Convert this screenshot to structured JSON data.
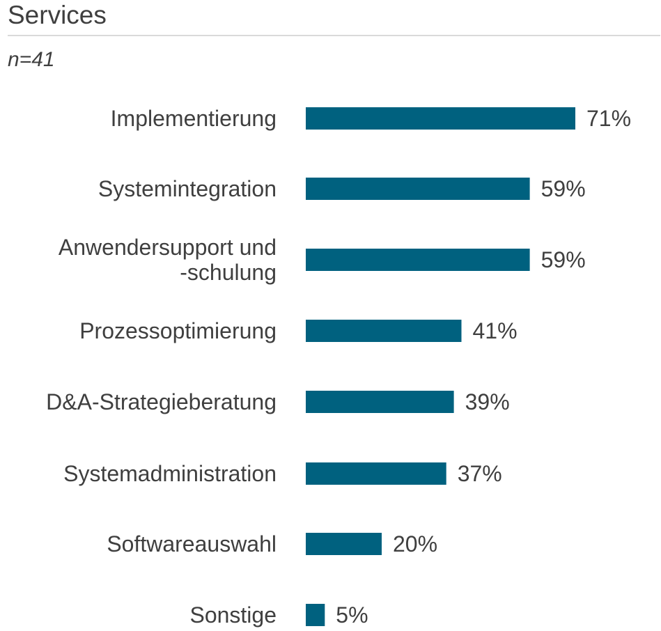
{
  "header": {
    "title": "Services",
    "subtitle": "n=41"
  },
  "colors": {
    "bar": "#00617f",
    "text": "#3f3f3f",
    "rule": "#d9d9d9"
  },
  "chart_data": {
    "type": "bar",
    "orientation": "horizontal",
    "title": "Services",
    "subtitle": "n=41",
    "xlabel": "",
    "ylabel": "",
    "unit": "%",
    "xlim": [
      0,
      71
    ],
    "grid": false,
    "legend": "none",
    "categories": [
      [
        "Implementierung"
      ],
      [
        "Systemintegration"
      ],
      [
        "Anwendersupport und",
        "-schulung"
      ],
      [
        "Prozessoptimierung"
      ],
      [
        "D&A-Strategieberatung"
      ],
      [
        "Systemadministration"
      ],
      [
        "Softwareauswahl"
      ],
      [
        "Sonstige"
      ]
    ],
    "values": [
      71,
      59,
      59,
      41,
      39,
      37,
      20,
      5
    ],
    "value_labels": [
      "71%",
      "59%",
      "59%",
      "41%",
      "39%",
      "37%",
      "20%",
      "5%"
    ]
  }
}
